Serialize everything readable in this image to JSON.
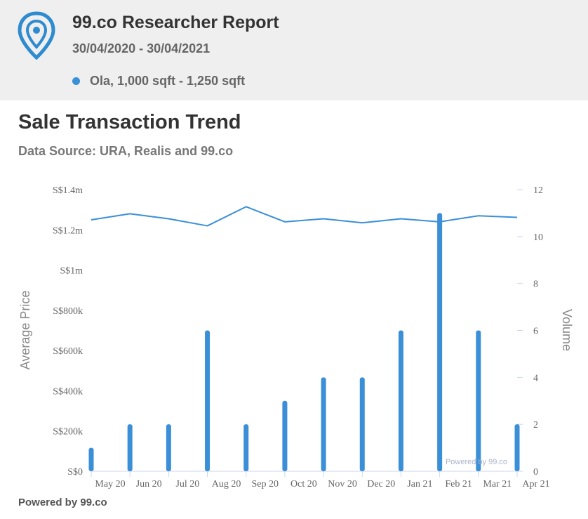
{
  "header": {
    "title": "99.co Researcher Report",
    "date_range": "30/04/2020 - 30/04/2021",
    "legend_label": "Ola, 1,000 sqft - 1,250 sqft",
    "accent_color": "#3a8fd7"
  },
  "chart_data": {
    "type": "bar",
    "title": "Sale Transaction Trend",
    "subtitle": "Data Source: URA, Realis and 99.co",
    "categories": [
      "May 20",
      "Jun 20",
      "Jul 20",
      "Aug 20",
      "Sep 20",
      "Oct 20",
      "Nov 20",
      "Dec 20",
      "Jan 21",
      "Feb 21",
      "Mar 21",
      "Apr 21"
    ],
    "y_left": {
      "label": "Average Price",
      "range": [
        0,
        1400000
      ],
      "ticks": [
        "S$0",
        "S$200k",
        "S$400k",
        "S$600k",
        "S$800k",
        "S$1m",
        "S$1.2m",
        "S$1.4m"
      ]
    },
    "y_right": {
      "label": "Volume",
      "range": [
        0,
        12
      ],
      "ticks": [
        "0",
        "2",
        "4",
        "6",
        "8",
        "10",
        "12"
      ]
    },
    "series": [
      {
        "name": "Volume",
        "type": "bar",
        "axis": "right",
        "color": "#3a8fd7",
        "values": [
          1,
          2,
          2,
          6,
          2,
          3,
          4,
          4,
          6,
          11,
          6,
          2
        ]
      },
      {
        "name": "Average Price",
        "type": "line",
        "axis": "left",
        "color": "#3a8fd7",
        "values": [
          1250000,
          1280000,
          1255000,
          1220000,
          1315000,
          1240000,
          1255000,
          1235000,
          1255000,
          1240000,
          1270000,
          1262000
        ]
      }
    ],
    "watermark": "Powered by 99.co",
    "grid": false
  },
  "footer": {
    "text": "Powered by 99.co"
  }
}
